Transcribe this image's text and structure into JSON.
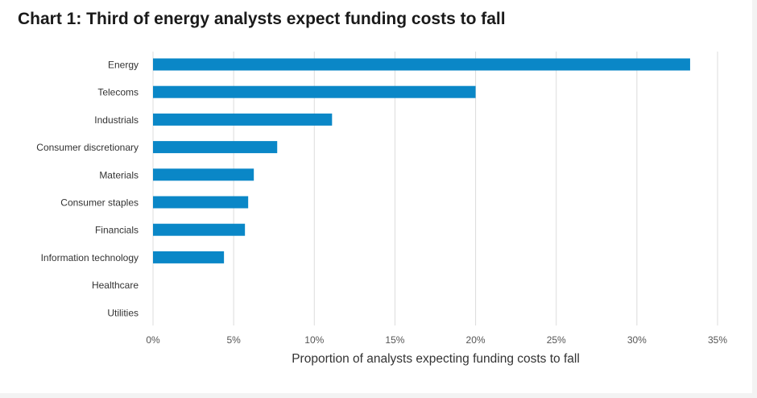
{
  "chart_data": {
    "type": "bar",
    "orientation": "horizontal",
    "title": "Chart 1: Third of energy analysts expect funding costs to fall",
    "xlabel": "Proportion of analysts expecting funding costs to fall",
    "ylabel": "",
    "categories": [
      "Energy",
      "Telecoms",
      "Industrials",
      "Consumer discretionary",
      "Materials",
      "Consumer staples",
      "Financials",
      "Information technology",
      "Healthcare",
      "Utilities"
    ],
    "values": [
      33.3,
      20.0,
      11.1,
      7.7,
      6.25,
      5.9,
      5.7,
      4.4,
      0,
      0
    ],
    "xlim": [
      0,
      35
    ],
    "ticks": [
      0,
      5,
      10,
      15,
      20,
      25,
      30,
      35
    ],
    "tick_labels": [
      "0%",
      "5%",
      "10%",
      "15%",
      "20%",
      "25%",
      "30%",
      "35%"
    ],
    "grid": "vertical",
    "bar_color": "#0a87c7",
    "grid_color": "#dcdcdc"
  }
}
